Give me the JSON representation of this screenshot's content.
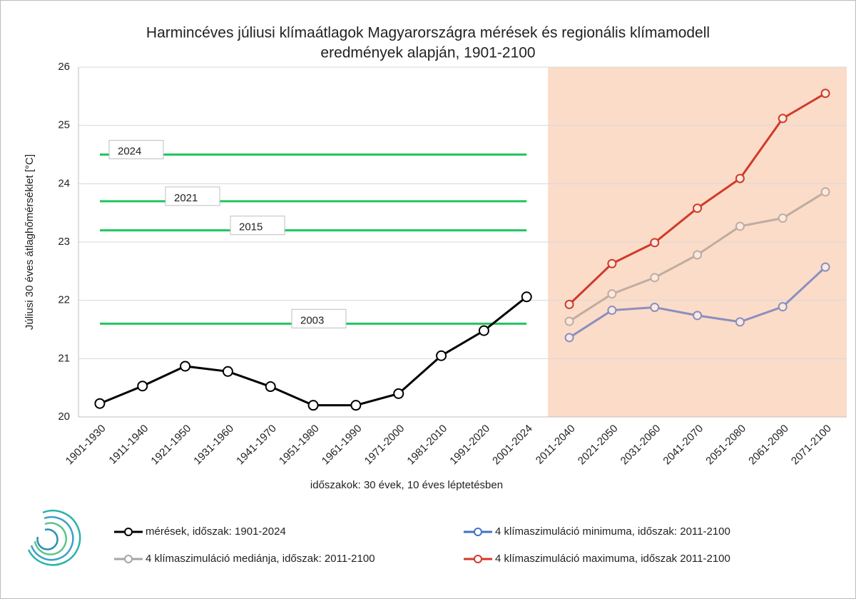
{
  "chart_data": {
    "type": "line",
    "title": [
      "Harmincéves júliusi klímaátlagok Magyarországra mérések és regionális klímamodell",
      "eredmények alapján, 1901-2100"
    ],
    "x_label": "időszakok: 30 évek, 10 éves léptetésben",
    "y_label": "Júliusi 30 éves átlaghőmérséklet [°C]",
    "categories": [
      "1901-1930",
      "1911-1940",
      "1921-1950",
      "1931-1960",
      "1941-1970",
      "1951-1980",
      "1961-1990",
      "1971-2000",
      "1981-2010",
      "1991-2020",
      "2001-2024",
      "2011-2040",
      "2021-2050",
      "2031-2060",
      "2041-2070",
      "2051-2080",
      "2061-2090",
      "2071-2100"
    ],
    "series": [
      {
        "name": "mérések, időszak: 1901-2024",
        "color": "#000000",
        "values": [
          20.23,
          20.53,
          20.87,
          20.78,
          20.52,
          20.2,
          20.2,
          20.4,
          21.05,
          21.48,
          22.06,
          null,
          null,
          null,
          null,
          null,
          null,
          null
        ]
      },
      {
        "name": "4 klímaszimuláció minimuma, időszak: 2011-2100",
        "color": "#8a8fbf",
        "legend_color": "#4472c4",
        "values": [
          null,
          null,
          null,
          null,
          null,
          null,
          null,
          null,
          null,
          null,
          null,
          21.36,
          21.83,
          21.88,
          21.74,
          21.63,
          21.89,
          22.57
        ]
      },
      {
        "name": "4 klímaszimuláció mediánja, időszak: 2011-2100",
        "color": "#c0aca0",
        "legend_color": "#a5a5a5",
        "values": [
          null,
          null,
          null,
          null,
          null,
          null,
          null,
          null,
          null,
          null,
          null,
          21.64,
          22.11,
          22.39,
          22.78,
          23.27,
          23.41,
          23.86
        ]
      },
      {
        "name": "4 klímaszimuláció maximuma, időszak 2011-2100",
        "color": "#d03a2a",
        "values": [
          null,
          null,
          null,
          null,
          null,
          null,
          null,
          null,
          null,
          null,
          null,
          21.93,
          22.63,
          22.99,
          23.58,
          24.09,
          25.12,
          25.55
        ]
      }
    ],
    "reference_lines": [
      {
        "label": "2024",
        "value": 24.5
      },
      {
        "label": "2021",
        "value": 23.7
      },
      {
        "label": "2015",
        "value": 23.2
      },
      {
        "label": "2003",
        "value": 21.6
      }
    ],
    "reference_color": "#22c55e",
    "shaded_from_category": 11,
    "shaded_color": "#fbdcc8",
    "ylim": [
      20,
      26
    ],
    "yticks": [
      20,
      21,
      22,
      23,
      24,
      25,
      26
    ],
    "grid": true
  }
}
